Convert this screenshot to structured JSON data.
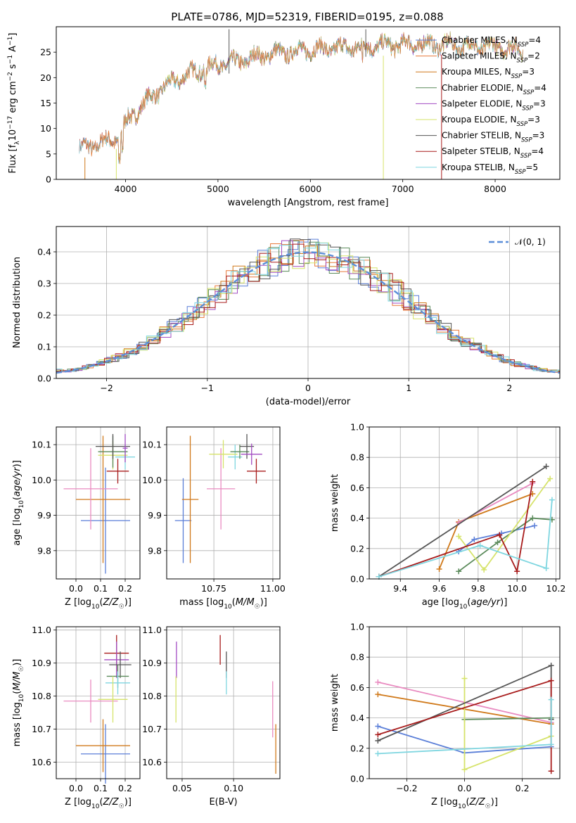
{
  "title": "PLATE=0786, MJD=52319, FIBERID=0195, z=0.088",
  "colors": {
    "chabrier_miles": "#5b7fd8",
    "salpeter_miles": "#e8793a",
    "kroupa_miles": "#d0791a",
    "chabrier_elodie": "#5a8a5a",
    "salpeter_elodie": "#a24cc2",
    "kroupa_elodie": "#d6e36a",
    "chabrier_stelib": "#555555",
    "salpeter_stelib": "#a81c1c",
    "kroupa_stelib": "#7fd6e0",
    "normal": "#5b8ed8",
    "pink": "#e98ac0"
  },
  "chart_data": [
    {
      "type": "line",
      "xlabel": "wavelength [Angstrom, rest frame]",
      "ylabel": "Flux [f_λ 10^-17 erg cm^-2 s^-1 A^-1]",
      "xlim": [
        3250,
        8700
      ],
      "ylim": [
        0,
        30
      ],
      "xticks": [
        "4000",
        "5000",
        "6000",
        "7000",
        "8000"
      ],
      "yticks": [
        "0",
        "5",
        "10",
        "15",
        "20",
        "25"
      ],
      "spectrum_trend": [
        {
          "x": 3500,
          "y": 6
        },
        {
          "x": 3700,
          "y": 7
        },
        {
          "x": 3900,
          "y": 8
        },
        {
          "x": 4000,
          "y": 11
        },
        {
          "x": 4200,
          "y": 15
        },
        {
          "x": 4400,
          "y": 18
        },
        {
          "x": 4600,
          "y": 20
        },
        {
          "x": 4800,
          "y": 21.5
        },
        {
          "x": 5000,
          "y": 22.5
        },
        {
          "x": 5200,
          "y": 23
        },
        {
          "x": 5500,
          "y": 24.5
        },
        {
          "x": 6000,
          "y": 25.5
        },
        {
          "x": 6500,
          "y": 26
        },
        {
          "x": 7000,
          "y": 26.5
        },
        {
          "x": 7500,
          "y": 26.5
        },
        {
          "x": 8000,
          "y": 26
        },
        {
          "x": 8300,
          "y": 25.5
        }
      ],
      "legend": [
        {
          "label": "Chabrier MILES, N",
          "sub": "SSP",
          "val": "=4",
          "color_key": "chabrier_miles"
        },
        {
          "label": "Salpeter MILES, N",
          "sub": "SSP",
          "val": "=2",
          "color_key": "salpeter_miles"
        },
        {
          "label": "Kroupa MILES, N",
          "sub": "SSP",
          "val": "=3",
          "color_key": "kroupa_miles"
        },
        {
          "label": "Chabrier ELODIE, N",
          "sub": "SSP",
          "val": "=4",
          "color_key": "chabrier_elodie"
        },
        {
          "label": "Salpeter ELODIE, N",
          "sub": "SSP",
          "val": "=3",
          "color_key": "salpeter_elodie"
        },
        {
          "label": "Kroupa ELODIE, N",
          "sub": "SSP",
          "val": "=3",
          "color_key": "kroupa_elodie"
        },
        {
          "label": "Chabrier STELIB, N",
          "sub": "SSP",
          "val": "=3",
          "color_key": "chabrier_stelib"
        },
        {
          "label": "Salpeter STELIB, N",
          "sub": "SSP",
          "val": "=4",
          "color_key": "salpeter_stelib"
        },
        {
          "label": "Kroupa STELIB, N",
          "sub": "SSP",
          "val": "=5",
          "color_key": "kroupa_stelib"
        }
      ],
      "legend_placement": "right"
    },
    {
      "type": "line",
      "xlabel": "(data-model)/error",
      "ylabel": "Normed distribution",
      "xlim": [
        -2.5,
        2.5
      ],
      "ylim": [
        0,
        0.48
      ],
      "xticks": [
        "−2",
        "−1",
        "0",
        "1",
        "2"
      ],
      "yticks": [
        "0.0",
        "0.1",
        "0.2",
        "0.3",
        "0.4"
      ],
      "grid": true,
      "legend": [
        {
          "label": "𝒩(0, 1)",
          "color_key": "normal"
        }
      ],
      "legend_placement": "top-right",
      "note": "step histograms for each of the 9 fits, overplotted with a dashed standard normal curve"
    },
    {
      "type": "scatter",
      "xlabel": "Z [log10(Z/Z☉)]",
      "ylabel": "age [log10(age/yr)]",
      "xlim": [
        -0.08,
        0.26
      ],
      "ylim": [
        9.72,
        10.15
      ],
      "xticks": [
        "0.0",
        "0.1",
        "0.2"
      ],
      "yticks": [
        "9.8",
        "9.9",
        "10.0",
        "10.1"
      ],
      "grid": true,
      "points": [
        {
          "x": 0.12,
          "y": 9.885,
          "xerr": 0.1,
          "yerr": 0.15,
          "color_key": "chabrier_miles"
        },
        {
          "x": 0.11,
          "y": 9.945,
          "xerr": 0.11,
          "yerr": 0.18,
          "color_key": "kroupa_miles"
        },
        {
          "x": 0.06,
          "y": 9.975,
          "xerr": 0.11,
          "yerr": 0.115,
          "color_key": "pink"
        },
        {
          "x": 0.17,
          "y": 10.025,
          "xerr": 0.045,
          "yerr": 0.035,
          "color_key": "salpeter_stelib"
        },
        {
          "x": 0.2,
          "y": 10.065,
          "xerr": 0.04,
          "yerr": 0.035,
          "color_key": "kroupa_stelib"
        },
        {
          "x": 0.15,
          "y": 10.07,
          "xerr": 0.06,
          "yerr": 0.04,
          "color_key": "kroupa_elodie"
        },
        {
          "x": 0.15,
          "y": 10.08,
          "xerr": 0.06,
          "yerr": 0.045,
          "color_key": "chabrier_elodie"
        },
        {
          "x": 0.15,
          "y": 10.095,
          "xerr": 0.07,
          "yerr": 0.035,
          "color_key": "chabrier_stelib"
        },
        {
          "x": 0.2,
          "y": 10.09,
          "xerr": 0.01,
          "yerr": 0.04,
          "color_key": "salpeter_elodie"
        }
      ]
    },
    {
      "type": "scatter",
      "xlabel": "mass [log10(M/M☉)]",
      "ylabel": "",
      "xlim": [
        10.55,
        11.03
      ],
      "ylim": [
        9.72,
        10.15
      ],
      "xticks": [
        "10.75",
        "11.00"
      ],
      "yticks": [
        "9.8",
        "9.9",
        "10.0",
        "10.1"
      ],
      "grid": true,
      "points": [
        {
          "x": 10.62,
          "y": 9.885,
          "xerr": 0.035,
          "yerr": 0.12,
          "color_key": "chabrier_miles"
        },
        {
          "x": 10.65,
          "y": 9.945,
          "xerr": 0.035,
          "yerr": 0.18,
          "color_key": "kroupa_miles"
        },
        {
          "x": 10.78,
          "y": 9.975,
          "xerr": 0.06,
          "yerr": 0.115,
          "color_key": "pink"
        },
        {
          "x": 10.93,
          "y": 10.025,
          "xerr": 0.04,
          "yerr": 0.035,
          "color_key": "salpeter_stelib"
        },
        {
          "x": 10.84,
          "y": 10.065,
          "xerr": 0.03,
          "yerr": 0.035,
          "color_key": "kroupa_stelib"
        },
        {
          "x": 10.79,
          "y": 10.073,
          "xerr": 0.06,
          "yerr": 0.04,
          "color_key": "kroupa_elodie"
        },
        {
          "x": 10.86,
          "y": 10.08,
          "xerr": 0.04,
          "yerr": 0.02,
          "color_key": "chabrier_elodie"
        },
        {
          "x": 10.89,
          "y": 10.095,
          "xerr": 0.03,
          "yerr": 0.035,
          "color_key": "chabrier_stelib"
        },
        {
          "x": 10.91,
          "y": 10.073,
          "xerr": 0.045,
          "yerr": 0.03,
          "color_key": "salpeter_elodie"
        }
      ]
    },
    {
      "type": "line",
      "xlabel": "age [log10(age/yr)]",
      "ylabel": "mass weight",
      "xlim": [
        9.24,
        10.22
      ],
      "ylim": [
        0,
        1.0
      ],
      "xticks": [
        "9.4",
        "9.6",
        "9.8",
        "10.0",
        "10.2"
      ],
      "yticks": [
        "0.0",
        "0.2",
        "0.4",
        "0.6",
        "0.8",
        "1.0"
      ],
      "grid": true,
      "series": [
        {
          "color_key": "chabrier_miles",
          "x": [
            9.7,
            9.78,
            9.92,
            10.09
          ],
          "y": [
            0.18,
            0.26,
            0.3,
            0.35
          ]
        },
        {
          "color_key": "kroupa_miles",
          "x": [
            9.6,
            9.7,
            10.08
          ],
          "y": [
            0.065,
            0.375,
            0.56
          ]
        },
        {
          "color_key": "pink",
          "x": [
            9.7,
            10.08
          ],
          "y": [
            0.37,
            0.63
          ]
        },
        {
          "color_key": "chabrier_elodie",
          "x": [
            9.7,
            9.9,
            10.08,
            10.18
          ],
          "y": [
            0.05,
            0.24,
            0.4,
            0.39
          ]
        },
        {
          "color_key": "kroupa_elodie",
          "x": [
            9.7,
            9.83,
            10.17
          ],
          "y": [
            0.28,
            0.06,
            0.66
          ]
        },
        {
          "color_key": "chabrier_stelib",
          "x": [
            9.29,
            10.15
          ],
          "y": [
            0.015,
            0.74
          ]
        },
        {
          "color_key": "salpeter_stelib",
          "x": [
            9.29,
            9.91,
            10.0,
            10.08
          ],
          "y": [
            0.015,
            0.29,
            0.05,
            0.64
          ]
        },
        {
          "color_key": "kroupa_stelib",
          "x": [
            9.29,
            9.81,
            10.15,
            10.18
          ],
          "y": [
            0.015,
            0.22,
            0.07,
            0.52
          ]
        }
      ]
    },
    {
      "type": "scatter",
      "xlabel": "Z [log10(Z/Z☉)]",
      "ylabel": "mass [log10(M/M☉)]",
      "xlim": [
        -0.08,
        0.26
      ],
      "ylim": [
        10.55,
        11.01
      ],
      "xticks": [
        "0.0",
        "0.1",
        "0.2"
      ],
      "yticks": [
        "10.6",
        "10.7",
        "10.8",
        "10.9",
        "11.0"
      ],
      "grid": true,
      "points": [
        {
          "x": 0.12,
          "y": 10.625,
          "xerr": 0.1,
          "yerr": 0.09,
          "color_key": "chabrier_miles"
        },
        {
          "x": 0.11,
          "y": 10.65,
          "xerr": 0.11,
          "yerr": 0.08,
          "color_key": "kroupa_miles"
        },
        {
          "x": 0.06,
          "y": 10.785,
          "xerr": 0.11,
          "yerr": 0.065,
          "color_key": "pink"
        },
        {
          "x": 0.165,
          "y": 10.93,
          "xerr": 0.05,
          "yerr": 0.055,
          "color_key": "salpeter_stelib"
        },
        {
          "x": 0.165,
          "y": 10.91,
          "xerr": 0.05,
          "yerr": 0.055,
          "color_key": "salpeter_elodie"
        },
        {
          "x": 0.18,
          "y": 10.895,
          "xerr": 0.045,
          "yerr": 0.04,
          "color_key": "chabrier_stelib"
        },
        {
          "x": 0.17,
          "y": 10.86,
          "xerr": 0.045,
          "yerr": 0.035,
          "color_key": "chabrier_elodie"
        },
        {
          "x": 0.17,
          "y": 10.84,
          "xerr": 0.05,
          "yerr": 0.035,
          "color_key": "kroupa_stelib"
        },
        {
          "x": 0.15,
          "y": 10.79,
          "xerr": 0.06,
          "yerr": 0.07,
          "color_key": "kroupa_elodie"
        }
      ]
    },
    {
      "type": "scatter",
      "xlabel": "E(B-V)",
      "ylabel": "",
      "xlim": [
        0.035,
        0.145
      ],
      "ylim": [
        10.55,
        11.01
      ],
      "xticks": [
        "0.05",
        "0.10"
      ],
      "yticks": [
        "10.6",
        "10.7",
        "10.8",
        "10.9",
        "11.0"
      ],
      "grid": true,
      "points": [
        {
          "x": 0.0445,
          "y": 10.91,
          "yerr": 0.055,
          "color_key": "salpeter_elodie"
        },
        {
          "x": 0.044,
          "y": 10.79,
          "yerr": 0.07,
          "color_key": "kroupa_elodie"
        },
        {
          "x": 0.087,
          "y": 10.94,
          "yerr": 0.045,
          "color_key": "salpeter_stelib"
        },
        {
          "x": 0.093,
          "y": 10.895,
          "yerr": 0.04,
          "color_key": "chabrier_stelib"
        },
        {
          "x": 0.093,
          "y": 10.84,
          "yerr": 0.035,
          "color_key": "kroupa_stelib"
        },
        {
          "x": 0.138,
          "y": 10.76,
          "yerr": 0.085,
          "color_key": "pink"
        },
        {
          "x": 0.141,
          "y": 10.64,
          "yerr": 0.075,
          "color_key": "kroupa_miles"
        }
      ]
    },
    {
      "type": "line",
      "xlabel": "Z [log10(Z/Z☉)]",
      "ylabel": "mass weight",
      "xlim": [
        -0.33,
        0.33
      ],
      "ylim": [
        0,
        1.0
      ],
      "xticks": [
        "−0.2",
        "0.0",
        "0.2"
      ],
      "yticks": [
        "0.0",
        "0.2",
        "0.4",
        "0.6",
        "0.8",
        "1.0"
      ],
      "grid": true,
      "series": [
        {
          "color_key": "chabrier_miles",
          "x": [
            -0.3,
            0.0,
            0.3
          ],
          "y": [
            0.345,
            0.17,
            0.21
          ]
        },
        {
          "color_key": "kroupa_miles",
          "x": [
            -0.3,
            0.3
          ],
          "y": [
            0.555,
            0.36
          ]
        },
        {
          "color_key": "pink",
          "x": [
            -0.3,
            0.3
          ],
          "y": [
            0.635,
            0.37
          ]
        },
        {
          "color_key": "chabrier_elodie",
          "x": [
            0.0,
            0.3
          ],
          "y": [
            0.39,
            0.4
          ]
        },
        {
          "color_key": "kroupa_elodie",
          "x": [
            0.0,
            0.0,
            0.3
          ],
          "y": [
            0.66,
            0.06,
            0.28
          ]
        },
        {
          "color_key": "chabrier_stelib",
          "x": [
            -0.3,
            0.3,
            0.3
          ],
          "y": [
            0.25,
            0.745,
            0.39
          ]
        },
        {
          "color_key": "salpeter_stelib",
          "x": [
            -0.3,
            0.3,
            0.3
          ],
          "y": [
            0.29,
            0.645,
            0.05
          ]
        },
        {
          "color_key": "kroupa_stelib",
          "x": [
            -0.3,
            0.3,
            0.3
          ],
          "y": [
            0.165,
            0.225,
            0.52
          ]
        }
      ]
    }
  ]
}
